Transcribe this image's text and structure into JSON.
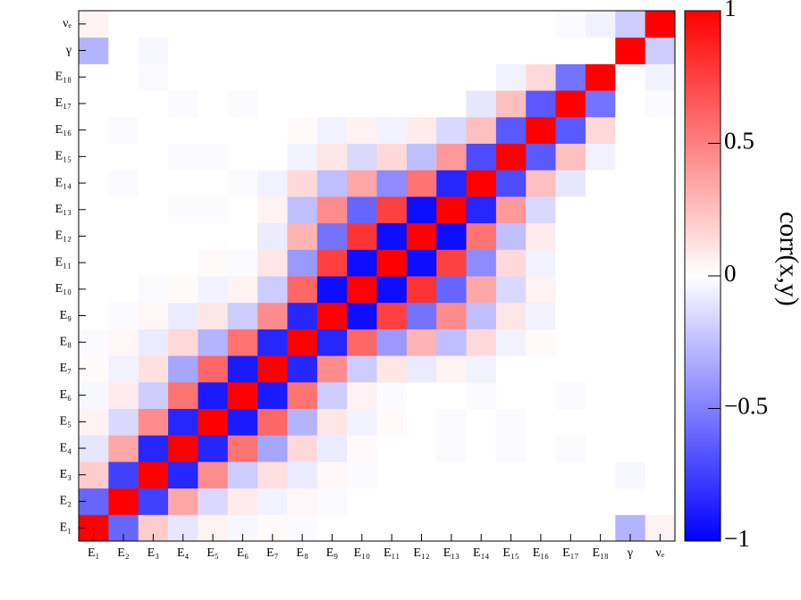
{
  "chart_data": {
    "type": "heatmap",
    "x_categories": [
      "E₁",
      "E₂",
      "E₃",
      "E₄",
      "E₅",
      "E₆",
      "E₇",
      "E₈",
      "E₉",
      "E₁₀",
      "E₁₁",
      "E₁₂",
      "E₁₃",
      "E₁₄",
      "E₁₅",
      "E₁₆",
      "E₁₇",
      "E₁₈",
      "γ",
      "νₑ"
    ],
    "y_categories": [
      "E₁",
      "E₂",
      "E₃",
      "E₄",
      "E₅",
      "E₆",
      "E₇",
      "E₈",
      "E₉",
      "E₁₀",
      "E₁₁",
      "E₁₂",
      "E₁₃",
      "E₁₄",
      "E₁₅",
      "E₁₆",
      "E₁₇",
      "E₁₈",
      "γ",
      "νₑ"
    ],
    "z": [
      [
        1,
        -0.6,
        0.2,
        -0.1,
        0.05,
        -0.03,
        0.02,
        -0.02,
        0,
        0,
        0,
        0,
        0,
        0,
        0,
        0,
        0,
        0,
        -0.3,
        0.05
      ],
      [
        -0.6,
        1,
        -0.75,
        0.35,
        -0.15,
        0.08,
        -0.05,
        0.03,
        -0.02,
        0,
        0,
        0,
        0,
        0,
        0,
        0,
        0,
        0,
        0,
        0
      ],
      [
        0.2,
        -0.75,
        1,
        -0.85,
        0.45,
        -0.2,
        0.12,
        -0.08,
        0.03,
        -0.02,
        0,
        0,
        0,
        0,
        0,
        0,
        0,
        0,
        -0.03,
        0
      ],
      [
        -0.1,
        0.35,
        -0.85,
        1,
        -0.85,
        0.55,
        -0.35,
        0.15,
        -0.08,
        0.02,
        0,
        0,
        -0.02,
        0,
        -0.02,
        0,
        -0.02,
        0,
        0,
        0
      ],
      [
        0.05,
        -0.15,
        0.45,
        -0.85,
        1,
        -0.9,
        0.6,
        -0.3,
        0.1,
        -0.05,
        0.02,
        0,
        -0.02,
        0,
        -0.02,
        0,
        0,
        0,
        0,
        0
      ],
      [
        -0.03,
        0.08,
        -0.2,
        0.55,
        -0.9,
        1,
        -0.9,
        0.55,
        -0.2,
        0.05,
        -0.02,
        0,
        0,
        -0.02,
        0,
        0,
        -0.02,
        0,
        0,
        0
      ],
      [
        0.02,
        -0.05,
        0.12,
        -0.35,
        0.6,
        -0.9,
        1,
        -0.85,
        0.45,
        -0.2,
        0.1,
        -0.08,
        0.05,
        -0.05,
        0,
        0,
        0,
        0,
        0,
        0
      ],
      [
        -0.02,
        0.03,
        -0.08,
        0.15,
        -0.3,
        0.55,
        -0.85,
        1,
        -0.85,
        0.6,
        -0.4,
        0.3,
        -0.25,
        0.15,
        -0.05,
        0.02,
        0,
        0,
        0,
        0
      ],
      [
        0,
        -0.02,
        0.03,
        -0.08,
        0.1,
        -0.2,
        0.45,
        -0.85,
        1,
        -0.95,
        0.75,
        -0.55,
        0.45,
        -0.25,
        0.1,
        -0.05,
        0,
        0,
        0,
        0
      ],
      [
        0,
        0,
        -0.02,
        0.02,
        -0.05,
        0.05,
        -0.2,
        0.6,
        -0.95,
        1,
        -0.95,
        0.8,
        -0.6,
        0.35,
        -0.15,
        0.05,
        0,
        0,
        0,
        0
      ],
      [
        0,
        0,
        0,
        0,
        0.02,
        -0.02,
        0.1,
        -0.4,
        0.75,
        -0.95,
        1,
        -0.95,
        0.75,
        -0.45,
        0.15,
        -0.05,
        0,
        0,
        0,
        0
      ],
      [
        0,
        0,
        0,
        0,
        0,
        0,
        -0.08,
        0.3,
        -0.55,
        0.8,
        -0.95,
        1,
        -0.95,
        0.55,
        -0.25,
        0.08,
        0,
        0,
        0,
        0
      ],
      [
        0,
        0,
        0,
        -0.02,
        -0.02,
        0,
        0.05,
        -0.25,
        0.45,
        -0.6,
        0.75,
        -0.95,
        1,
        -0.85,
        0.4,
        -0.15,
        0,
        0,
        0,
        0
      ],
      [
        0,
        -0.02,
        0,
        0,
        0,
        -0.02,
        -0.05,
        0.15,
        -0.25,
        0.35,
        -0.45,
        0.55,
        -0.85,
        1,
        -0.7,
        0.25,
        -0.1,
        0,
        0,
        0
      ],
      [
        0,
        0,
        0,
        -0.02,
        -0.02,
        0,
        0,
        -0.05,
        0.1,
        -0.15,
        0.15,
        -0.25,
        0.4,
        -0.7,
        1,
        -0.65,
        0.25,
        -0.05,
        0,
        0
      ],
      [
        0,
        -0.02,
        0,
        0,
        0,
        0,
        0,
        0.02,
        -0.05,
        0.05,
        -0.05,
        0.08,
        -0.15,
        0.25,
        -0.65,
        1,
        -0.65,
        0.15,
        0,
        0
      ],
      [
        0,
        0,
        0,
        -0.02,
        0,
        -0.02,
        0,
        0,
        0,
        0,
        0,
        0,
        0,
        -0.1,
        0.25,
        -0.65,
        1,
        -0.55,
        0,
        -0.02
      ],
      [
        0,
        0,
        -0.02,
        0,
        0,
        0,
        0,
        0,
        0,
        0,
        0,
        0,
        0,
        0,
        -0.05,
        0.15,
        -0.55,
        1,
        0,
        -0.05
      ],
      [
        -0.3,
        0,
        -0.03,
        0,
        0,
        0,
        0,
        0,
        0,
        0,
        0,
        0,
        0,
        0,
        0,
        0,
        0,
        0,
        1,
        -0.2
      ],
      [
        0.05,
        0,
        0,
        0,
        0,
        0,
        0,
        0,
        0,
        0,
        0,
        0,
        0,
        0,
        0,
        0,
        -0.02,
        -0.05,
        -0.2,
        1
      ]
    ],
    "zlim": [
      -1,
      1
    ],
    "zticks": [
      {
        "value": -1,
        "label": "−1"
      },
      {
        "value": -0.5,
        "label": "−0.5"
      },
      0,
      0.5,
      1
    ],
    "colorbar_label": "corr(x,y)",
    "colormap": {
      "low": "#0000ff",
      "mid": "#ffffff",
      "high": "#ff0000"
    }
  }
}
